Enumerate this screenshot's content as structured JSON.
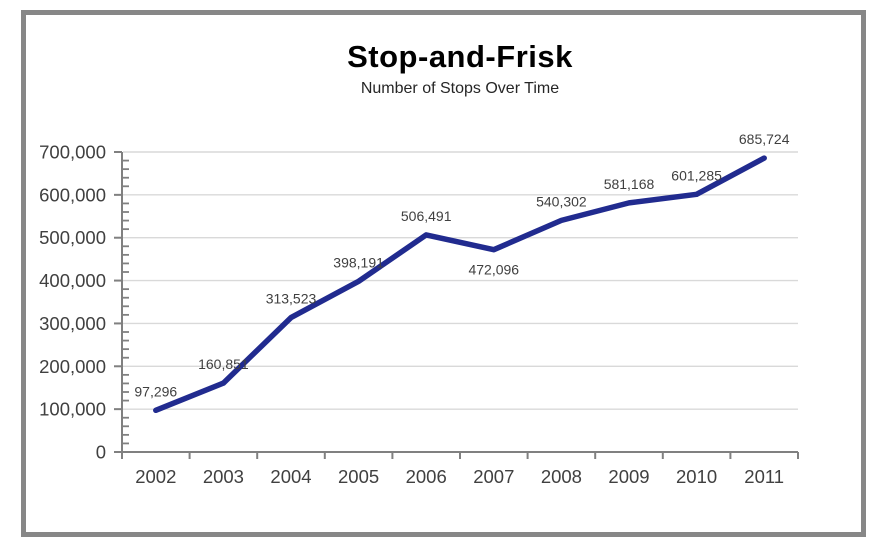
{
  "chart_data": {
    "type": "line",
    "title": "Stop-and-Frisk",
    "subtitle": "Number of Stops Over Time",
    "xlabel": "",
    "ylabel": "",
    "categories": [
      "2002",
      "2003",
      "2004",
      "2005",
      "2006",
      "2007",
      "2008",
      "2009",
      "2010",
      "2011"
    ],
    "values": [
      97296,
      160851,
      313523,
      398191,
      506491,
      472096,
      540302,
      581168,
      601285,
      685724
    ],
    "data_labels": [
      "97,296",
      "160,851",
      "313,523",
      "398,191",
      "506,491",
      "472,096",
      "540,302",
      "581,168",
      "601,285",
      "685,724"
    ],
    "data_label_positions": [
      "above",
      "above",
      "above",
      "above",
      "above",
      "below",
      "above",
      "above",
      "above",
      "above"
    ],
    "y_axis": {
      "min": 0,
      "max": 700000,
      "major_unit": 100000,
      "minor_unit": 20000,
      "tick_labels": [
        "0",
        "100,000",
        "200,000",
        "300,000",
        "400,000",
        "500,000",
        "600,000",
        "700,000"
      ]
    },
    "ylim": [
      0,
      700000
    ],
    "grid": "horizontal-major",
    "legend": "none",
    "colors": {
      "line": "#212B8F",
      "axis": "#808080",
      "gridline": "#D9D9D9",
      "tick_label": "#404040",
      "data_label": "#404040",
      "title": "#000000",
      "subtitle": "#262626",
      "frame_border": "#878787",
      "background": "#FFFFFF"
    }
  }
}
